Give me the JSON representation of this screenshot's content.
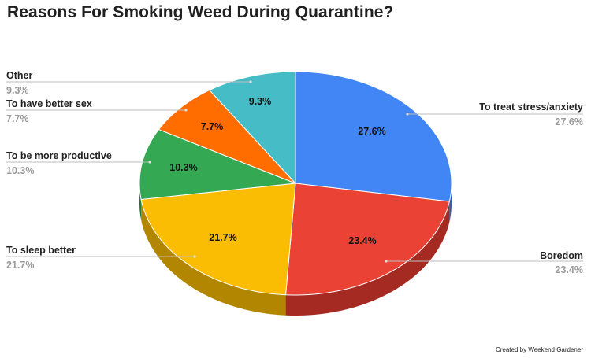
{
  "chart_data": {
    "type": "pie",
    "title": "Reasons For Smoking Weed During Quarantine?",
    "credit": "Created by Weekend Gardener",
    "slices": [
      {
        "label": "To treat stress/anxiety",
        "value": 27.6,
        "display": "27.6%",
        "color": "#4285f4",
        "side_color": "#2f5eb0"
      },
      {
        "label": "Boredom",
        "value": 23.4,
        "display": "23.4%",
        "color": "#ea4335",
        "side_color": "#a52a22"
      },
      {
        "label": "To sleep better",
        "value": 21.7,
        "display": "21.7%",
        "color": "#fbbc04",
        "side_color": "#b38600"
      },
      {
        "label": "To be more productive",
        "value": 10.3,
        "display": "10.3%",
        "color": "#34a853",
        "side_color": "#237a3b"
      },
      {
        "label": "To have better sex",
        "value": 7.7,
        "display": "7.7%",
        "color": "#ff6d01",
        "side_color": "#b84c00"
      },
      {
        "label": "Other",
        "value": 9.3,
        "display": "9.3%",
        "color": "#46bdc6",
        "side_color": "#2f8a91"
      }
    ]
  }
}
